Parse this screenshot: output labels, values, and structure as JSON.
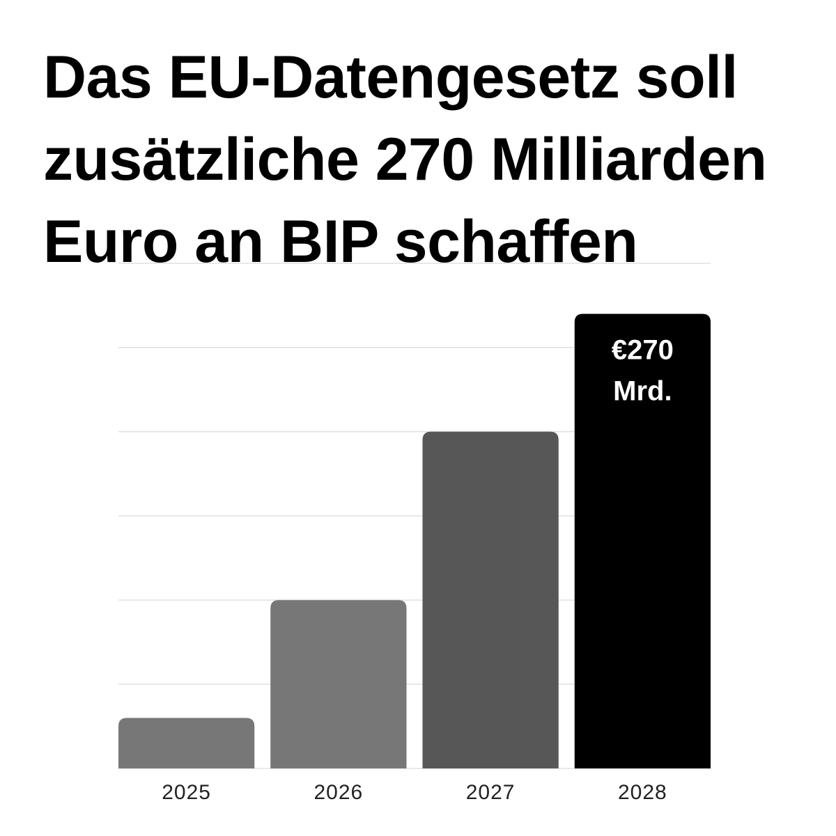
{
  "title": "Das EU-Datengesetz soll zusätzliche 270 Milliarden Euro an BIP schaffen",
  "chart_data": {
    "type": "bar",
    "categories": [
      "2025",
      "2026",
      "2027",
      "2028"
    ],
    "values": [
      30,
      100,
      200,
      270
    ],
    "ylim": [
      0,
      300
    ],
    "grid": true,
    "legend": "none",
    "data_labels": [
      "",
      "",
      "",
      "€270 Mrd."
    ],
    "colors": [
      "#777777",
      "#777777",
      "#575757",
      "#000000"
    ],
    "gridline_color": "#e0e0e0",
    "label_color": "#ffffff",
    "tick_label_color": "#222222"
  }
}
